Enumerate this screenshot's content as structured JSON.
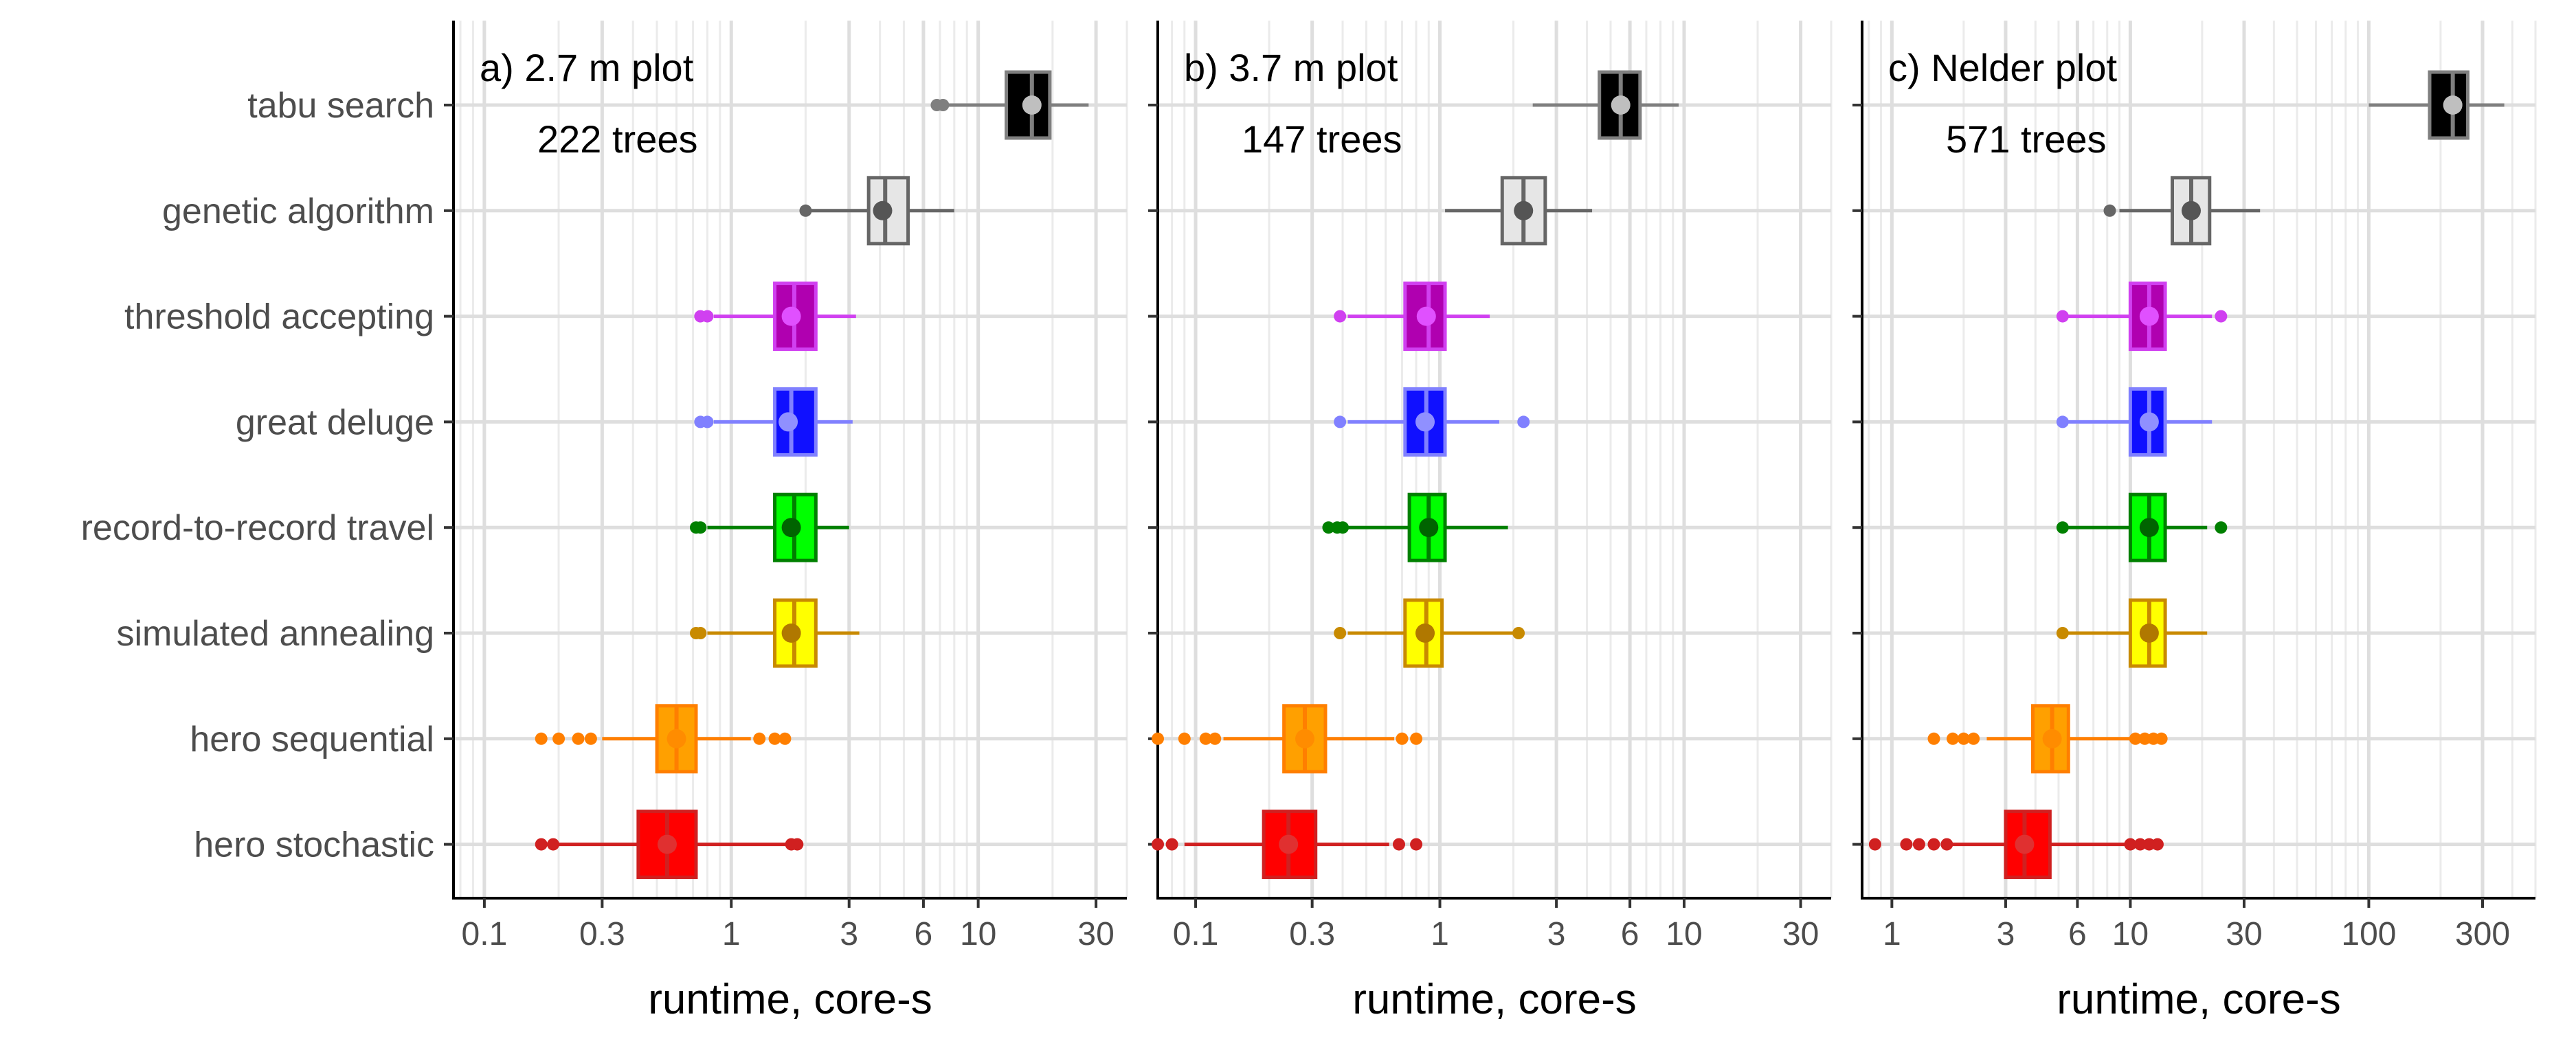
{
  "chart_data": {
    "type": "boxplot",
    "orientation": "horizontal",
    "x_scale": "log",
    "categories": [
      "tabu search",
      "genetic algorithm",
      "threshold accepting",
      "great deluge",
      "record-to-record travel",
      "simulated annealing",
      "hero sequential",
      "hero stochastic"
    ],
    "colors": {
      "tabu search": {
        "fill": "#000000",
        "line": "#7f7f7f",
        "point": "#bfbfbf"
      },
      "genetic algorithm": {
        "fill": "#e6e6e6",
        "line": "#666666",
        "point": "#555555"
      },
      "threshold accepting": {
        "fill": "#b000b0",
        "line": "#d040f0",
        "point": "#e050ff"
      },
      "great deluge": {
        "fill": "#1010ff",
        "line": "#8080ff",
        "point": "#9090ff"
      },
      "record-to-record travel": {
        "fill": "#00ff00",
        "line": "#008000",
        "point": "#006400"
      },
      "simulated annealing": {
        "fill": "#ffff00",
        "line": "#c88a00",
        "point": "#b07800"
      },
      "hero sequential": {
        "fill": "#ffa000",
        "line": "#ff7f00",
        "point": "#ff8c00"
      },
      "hero stochastic": {
        "fill": "#ff0000",
        "line": "#d02020",
        "point": "#e03030"
      }
    },
    "x_label": "runtime, core-s",
    "panels": [
      {
        "title": "a) 2.7 m plot",
        "subtitle": "222 trees",
        "xlim": [
          0.075,
          40
        ],
        "ticks": [
          0.1,
          0.3,
          1,
          3,
          6,
          10,
          30
        ],
        "tick_labels": [
          "0.1",
          "0.3",
          "1",
          "3",
          "6",
          "10",
          "30"
        ],
        "boxes": [
          {
            "category": "tabu search",
            "whisker_low": 7.5,
            "q1": 13,
            "median": 16.5,
            "mean": 16.5,
            "q3": 19.5,
            "whisker_high": 28,
            "outliers_low": [
              6.8,
              7.2
            ],
            "outliers_high": []
          },
          {
            "category": "genetic algorithm",
            "whisker_low": 2.1,
            "q1": 3.6,
            "median": 4.2,
            "mean": 4.1,
            "q3": 5.2,
            "whisker_high": 8,
            "outliers_low": [
              2.0
            ],
            "outliers_high": []
          },
          {
            "category": "threshold accepting",
            "whisker_low": 0.85,
            "q1": 1.5,
            "median": 1.8,
            "mean": 1.75,
            "q3": 2.2,
            "whisker_high": 3.2,
            "outliers_low": [
              0.75,
              0.8
            ],
            "outliers_high": []
          },
          {
            "category": "great deluge",
            "whisker_low": 0.85,
            "q1": 1.5,
            "median": 1.75,
            "mean": 1.7,
            "q3": 2.2,
            "whisker_high": 3.1,
            "outliers_low": [
              0.75,
              0.8
            ],
            "outliers_high": []
          },
          {
            "category": "record-to-record travel",
            "whisker_low": 0.8,
            "q1": 1.5,
            "median": 1.8,
            "mean": 1.75,
            "q3": 2.2,
            "whisker_high": 3.0,
            "outliers_low": [
              0.72,
              0.75
            ],
            "outliers_high": []
          },
          {
            "category": "simulated annealing",
            "whisker_low": 0.8,
            "q1": 1.5,
            "median": 1.8,
            "mean": 1.75,
            "q3": 2.2,
            "whisker_high": 3.3,
            "outliers_low": [
              0.72,
              0.75
            ],
            "outliers_high": []
          },
          {
            "category": "hero sequential",
            "whisker_low": 0.3,
            "q1": 0.5,
            "median": 0.6,
            "mean": 0.6,
            "q3": 0.72,
            "whisker_high": 1.2,
            "outliers_low": [
              0.17,
              0.2,
              0.24,
              0.27
            ],
            "outliers_high": [
              1.3,
              1.5,
              1.65
            ]
          },
          {
            "category": "hero stochastic",
            "whisker_low": 0.2,
            "q1": 0.42,
            "median": 0.55,
            "mean": 0.55,
            "q3": 0.72,
            "whisker_high": 1.7,
            "outliers_low": [
              0.17,
              0.19
            ],
            "outliers_high": [
              1.75,
              1.85
            ]
          }
        ]
      },
      {
        "title": "b) 3.7 m plot",
        "subtitle": "147 trees",
        "xlim": [
          0.07,
          40
        ],
        "ticks": [
          0.1,
          0.3,
          1,
          3,
          6,
          10,
          30
        ],
        "tick_labels": [
          "0.1",
          "0.3",
          "1",
          "3",
          "6",
          "10",
          "30"
        ],
        "boxes": [
          {
            "category": "tabu search",
            "whisker_low": 2.4,
            "q1": 4.5,
            "median": 5.5,
            "mean": 5.5,
            "q3": 6.6,
            "whisker_high": 9.5,
            "outliers_low": [],
            "outliers_high": []
          },
          {
            "category": "genetic algorithm",
            "whisker_low": 1.05,
            "q1": 1.8,
            "median": 2.2,
            "mean": 2.2,
            "q3": 2.7,
            "whisker_high": 4.2,
            "outliers_low": [],
            "outliers_high": []
          },
          {
            "category": "threshold accepting",
            "whisker_low": 0.42,
            "q1": 0.72,
            "median": 0.9,
            "mean": 0.88,
            "q3": 1.05,
            "whisker_high": 1.6,
            "outliers_low": [
              0.39
            ],
            "outliers_high": []
          },
          {
            "category": "great deluge",
            "whisker_low": 0.42,
            "q1": 0.72,
            "median": 0.88,
            "mean": 0.87,
            "q3": 1.05,
            "whisker_high": 1.75,
            "outliers_low": [
              0.39
            ],
            "outliers_high": [
              2.2
            ]
          },
          {
            "category": "record-to-record travel",
            "whisker_low": 0.42,
            "q1": 0.75,
            "median": 0.9,
            "mean": 0.9,
            "q3": 1.05,
            "whisker_high": 1.9,
            "outliers_low": [
              0.35,
              0.38,
              0.4
            ],
            "outliers_high": []
          },
          {
            "category": "simulated annealing",
            "whisker_low": 0.42,
            "q1": 0.72,
            "median": 0.88,
            "mean": 0.87,
            "q3": 1.02,
            "whisker_high": 2.0,
            "outliers_low": [
              0.39
            ],
            "outliers_high": [
              2.1
            ]
          },
          {
            "category": "hero sequential",
            "whisker_low": 0.13,
            "q1": 0.23,
            "median": 0.28,
            "mean": 0.28,
            "q3": 0.34,
            "whisker_high": 0.65,
            "outliers_low": [
              0.07,
              0.09,
              0.11,
              0.12
            ],
            "outliers_high": [
              0.7,
              0.8
            ]
          },
          {
            "category": "hero stochastic",
            "whisker_low": 0.09,
            "q1": 0.19,
            "median": 0.24,
            "mean": 0.24,
            "q3": 0.31,
            "whisker_high": 0.62,
            "outliers_low": [
              0.07,
              0.08
            ],
            "outliers_high": [
              0.68,
              0.8
            ]
          }
        ]
      },
      {
        "title": "c) Nelder plot",
        "subtitle": "571 trees",
        "xlim": [
          0.75,
          500
        ],
        "ticks": [
          1,
          3,
          6,
          10,
          30,
          100,
          300
        ],
        "tick_labels": [
          "1",
          "3",
          "6",
          "10",
          "30",
          "100",
          "300"
        ],
        "boxes": [
          {
            "category": "tabu search",
            "whisker_low": 100,
            "q1": 180,
            "median": 225,
            "mean": 225,
            "q3": 260,
            "whisker_high": 370,
            "outliers_low": [],
            "outliers_high": []
          },
          {
            "category": "genetic algorithm",
            "whisker_low": 9,
            "q1": 15,
            "median": 18,
            "mean": 18,
            "q3": 21.5,
            "whisker_high": 35,
            "outliers_low": [
              8.2
            ],
            "outliers_high": []
          },
          {
            "category": "threshold accepting",
            "whisker_low": 5.5,
            "q1": 10,
            "median": 12,
            "mean": 12,
            "q3": 14,
            "whisker_high": 22,
            "outliers_low": [
              5.2
            ],
            "outliers_high": [
              24
            ]
          },
          {
            "category": "great deluge",
            "whisker_low": 5.5,
            "q1": 10,
            "median": 12,
            "mean": 12,
            "q3": 14,
            "whisker_high": 22,
            "outliers_low": [
              5.2
            ],
            "outliers_high": []
          },
          {
            "category": "record-to-record travel",
            "whisker_low": 5.5,
            "q1": 10,
            "median": 12,
            "mean": 12,
            "q3": 14,
            "whisker_high": 21,
            "outliers_low": [
              5.2
            ],
            "outliers_high": [
              24
            ]
          },
          {
            "category": "simulated annealing",
            "whisker_low": 5.5,
            "q1": 10,
            "median": 12,
            "mean": 12,
            "q3": 14,
            "whisker_high": 21,
            "outliers_low": [
              5.2
            ],
            "outliers_high": []
          },
          {
            "category": "hero sequential",
            "whisker_low": 2.5,
            "q1": 3.9,
            "median": 4.7,
            "mean": 4.7,
            "q3": 5.5,
            "whisker_high": 10,
            "outliers_low": [
              1.5,
              1.8,
              2.0,
              2.2
            ],
            "outliers_high": [
              10.5,
              11.5,
              12.5,
              13.5
            ]
          },
          {
            "category": "hero stochastic",
            "whisker_low": 1.7,
            "q1": 3.0,
            "median": 3.6,
            "mean": 3.6,
            "q3": 4.6,
            "whisker_high": 9.5,
            "outliers_low": [
              0.85,
              1.15,
              1.3,
              1.5,
              1.7
            ],
            "outliers_high": [
              10,
              11,
              12,
              13
            ]
          }
        ]
      }
    ]
  }
}
